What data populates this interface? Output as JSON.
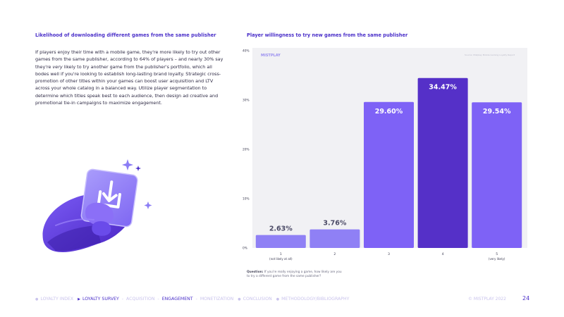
{
  "left": {
    "heading": "Likelihood of downloading different games from the same publisher",
    "body_part1": "If players enjoy their time with a mobile game, they're more likely to try out other games from the same publisher, according to 64% of players – and nearly 30% say they're ",
    "body_emph": "very",
    "body_part2": " likely to try another game from the publisher's portfolio, which all bodes well if you're looking to establish long-lasting brand loyalty. Strategic cross-promotion of other titles within your games can boost user acquisition and LTV across your whole catalog in a balanced way. Utilize player segmentation to determine which titles speak best to each audience, then design ad creative and promotional tie-in campaigns to maximize engagement."
  },
  "chart_data": {
    "type": "bar",
    "title": "Player willingness to try new games from the same publisher",
    "categories": [
      "1",
      "2",
      "3",
      "4",
      "5"
    ],
    "category_sublabels": [
      "(not likely at all)",
      "",
      "",
      "",
      "(very likely)"
    ],
    "values": [
      2.63,
      3.76,
      29.6,
      34.47,
      29.54
    ],
    "value_labels": [
      "2.63%",
      "3.76%",
      "29.60%",
      "34.47%",
      "29.54%"
    ],
    "yticks": [
      0,
      10,
      20,
      30,
      40
    ],
    "ytick_labels": [
      "0%",
      "10%",
      "20%",
      "30%",
      "40%"
    ],
    "ylim": [
      0,
      40
    ],
    "xlabel": "",
    "ylabel": "",
    "bar_colors": [
      "#8f80f5",
      "#8f80f5",
      "#7e62f6",
      "#5530c8",
      "#7e62f6"
    ],
    "panel_brand": "MISTPLAY",
    "panel_source": "Source: Mistplay Mobile Gaming Loyalty Report"
  },
  "question": {
    "label": "Question:",
    "text": " If you're really enjoying a game, how likely are you to try a different game from the same publisher?"
  },
  "footer": {
    "nav": [
      {
        "label": "LOYALTY INDEX",
        "active": false,
        "bullet": "●"
      },
      {
        "label": "LOYALTY SURVEY",
        "active": true,
        "bullet": "▶"
      },
      {
        "label": "ACQUISITION",
        "active": false,
        "bullet": ""
      },
      {
        "label": "ENGAGEMENT",
        "active": true,
        "bullet": ""
      },
      {
        "label": "MONETIZATION",
        "active": false,
        "bullet": ""
      },
      {
        "label": "CONCLUSION",
        "active": false,
        "bullet": "●"
      },
      {
        "label": "METHODOLOGY/BIBLIOGRAPHY",
        "active": false,
        "bullet": "●"
      }
    ],
    "copyright": "© MISTPLAY 2022",
    "page_number": "24"
  }
}
